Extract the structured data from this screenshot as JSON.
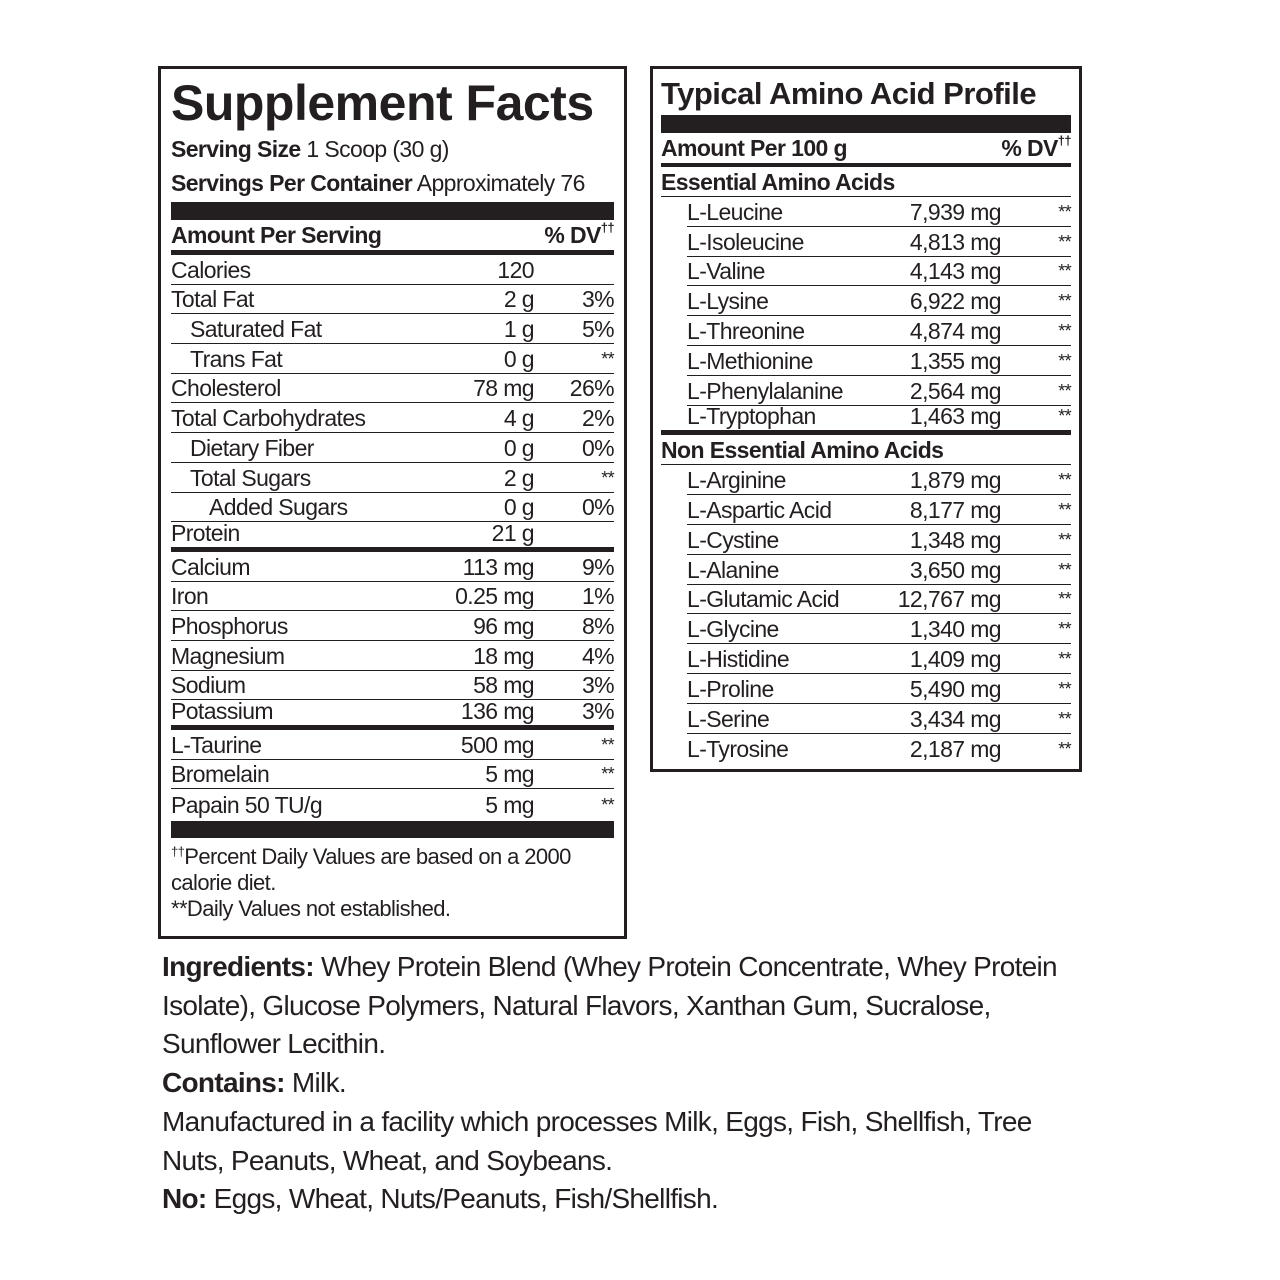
{
  "supplement_facts": {
    "title": "Supplement Facts",
    "serving_size_label": "Serving Size",
    "serving_size_value": "1 Scoop (30 g)",
    "servings_label": "Servings Per Container",
    "servings_value": "Approximately 76",
    "amount_header": "Amount Per Serving",
    "dv_header": "% DV",
    "dv_mark": "††",
    "rows": [
      {
        "name": "Calories",
        "amount": "120",
        "dv": "",
        "indent": 0
      },
      {
        "name": "Total Fat",
        "amount": "2 g",
        "dv": "3%",
        "indent": 0
      },
      {
        "name": "Saturated Fat",
        "amount": "1 g",
        "dv": "5%",
        "indent": 1
      },
      {
        "name": "Trans Fat",
        "amount": "0 g",
        "dv": "**",
        "indent": 1
      },
      {
        "name": "Cholesterol",
        "amount": "78 mg",
        "dv": "26%",
        "indent": 0
      },
      {
        "name": "Total Carbohydrates",
        "amount": "4 g",
        "dv": "2%",
        "indent": 0
      },
      {
        "name": "Dietary Fiber",
        "amount": "0 g",
        "dv": "0%",
        "indent": 1
      },
      {
        "name": "Total Sugars",
        "amount": "2 g",
        "dv": "**",
        "indent": 1
      },
      {
        "name": "Added Sugars",
        "amount": "0 g",
        "dv": "0%",
        "indent": 2
      },
      {
        "name": "Protein",
        "amount": "21 g",
        "dv": "",
        "indent": 0,
        "thick": true
      },
      {
        "name": "Calcium",
        "amount": "113 mg",
        "dv": "9%",
        "indent": 0
      },
      {
        "name": "Iron",
        "amount": "0.25 mg",
        "dv": "1%",
        "indent": 0
      },
      {
        "name": "Phosphorus",
        "amount": "96 mg",
        "dv": "8%",
        "indent": 0
      },
      {
        "name": "Magnesium",
        "amount": "18 mg",
        "dv": "4%",
        "indent": 0
      },
      {
        "name": "Sodium",
        "amount": "58 mg",
        "dv": "3%",
        "indent": 0
      },
      {
        "name": "Potassium",
        "amount": "136 mg",
        "dv": "3%",
        "indent": 0,
        "thick": true
      },
      {
        "name": "L-Taurine",
        "amount": "500 mg",
        "dv": "**",
        "indent": 0
      },
      {
        "name": "Bromelain",
        "amount": "5 mg",
        "dv": "**",
        "indent": 0
      },
      {
        "name": "Papain 50 TU/g",
        "amount": "5 mg",
        "dv": "**",
        "indent": 0,
        "last": true
      }
    ],
    "footnote_mark": "††",
    "footnote_1": "Percent Daily Values are based on a 2000 calorie diet.",
    "footnote_2": "**Daily Values not established."
  },
  "amino_profile": {
    "title": "Typical Amino Acid Profile",
    "amount_header": "Amount Per 100 g",
    "dv_header": "% DV",
    "dv_mark": "††",
    "essential_label": "Essential Amino Acids",
    "essential": [
      {
        "name": "L-Leucine",
        "amount": "7,939 mg",
        "dv": "**"
      },
      {
        "name": "L-Isoleucine",
        "amount": "4,813 mg",
        "dv": "**"
      },
      {
        "name": "L-Valine",
        "amount": "4,143 mg",
        "dv": "**"
      },
      {
        "name": "L-Lysine",
        "amount": "6,922 mg",
        "dv": "**"
      },
      {
        "name": "L-Threonine",
        "amount": "4,874 mg",
        "dv": "**"
      },
      {
        "name": "L-Methionine",
        "amount": "1,355 mg",
        "dv": "**"
      },
      {
        "name": "L-Phenylalanine",
        "amount": "2,564 mg",
        "dv": "**"
      },
      {
        "name": "L-Tryptophan",
        "amount": "1,463 mg",
        "dv": "**"
      }
    ],
    "nonessential_label": "Non Essential Amino Acids",
    "nonessential": [
      {
        "name": "L-Arginine",
        "amount": "1,879 mg",
        "dv": "**"
      },
      {
        "name": "L-Aspartic Acid",
        "amount": "8,177 mg",
        "dv": "**"
      },
      {
        "name": "L-Cystine",
        "amount": "1,348 mg",
        "dv": "**"
      },
      {
        "name": "L-Alanine",
        "amount": "3,650 mg",
        "dv": "**"
      },
      {
        "name": "L-Glutamic Acid",
        "amount": "12,767 mg",
        "dv": "**"
      },
      {
        "name": "L-Glycine",
        "amount": "1,340 mg",
        "dv": "**"
      },
      {
        "name": "L-Histidine",
        "amount": "1,409 mg",
        "dv": "**"
      },
      {
        "name": "L-Proline",
        "amount": "5,490 mg",
        "dv": "**"
      },
      {
        "name": "L-Serine",
        "amount": "3,434 mg",
        "dv": "**"
      },
      {
        "name": "L-Tyrosine",
        "amount": "2,187 mg",
        "dv": "**"
      }
    ]
  },
  "ingredients": {
    "ingredients_label": "Ingredients:",
    "ingredients_text": "Whey Protein Blend (Whey Protein Concentrate, Whey Protein Isolate), Glucose Polymers, Natural Flavors, Xanthan Gum, Sucralose, Sunflower Lecithin.",
    "contains_label": "Contains:",
    "contains_text": "Milk.",
    "facility_text": "Manufactured in a facility which processes Milk, Eggs, Fish, Shellfish, Tree Nuts, Peanuts, Wheat, and Soybeans.",
    "no_label": "No:",
    "no_text": "Eggs, Wheat, Nuts/Peanuts, Fish/Shellfish."
  }
}
